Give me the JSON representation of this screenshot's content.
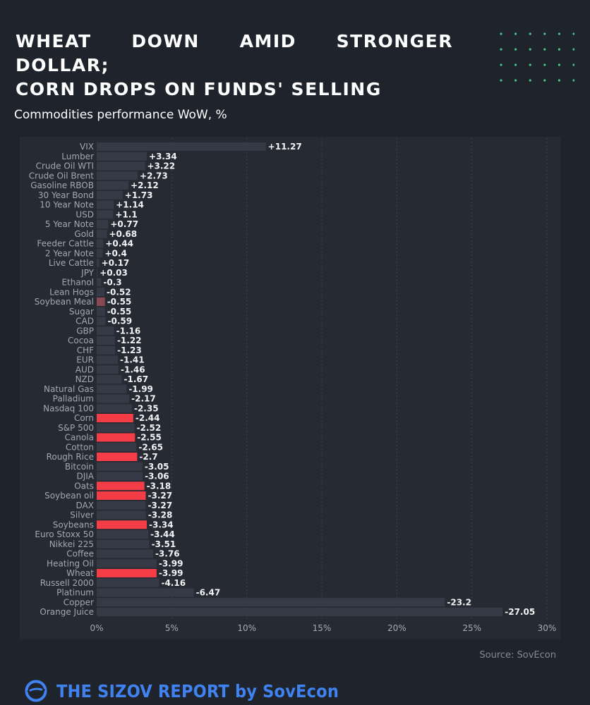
{
  "headline": {
    "line1": "WHEAT DOWN AMID STRONGER DOLLAR;",
    "line2": "CORN DROPS ON FUNDS' SELLING"
  },
  "brand": {
    "footer_text": "THE SIZOV REPORT by SovEcon",
    "logo_icon": "sovecon-logo-icon",
    "source": "Source: SovEcon"
  },
  "colors": {
    "background": "#1f232c",
    "plot_background": "#262a33",
    "bar_default": "#353a46",
    "bar_highlight": "#f43d46",
    "bar_soybean_meal": "#8a4852",
    "accent_dots": "#47c78a",
    "brand_blue": "#3f82f0"
  },
  "chart_data": {
    "type": "bar",
    "orientation": "horizontal",
    "title": "Commodities performance WoW, %",
    "x_tick_labels": [
      "0%",
      "5%",
      "10%",
      "15%",
      "20%",
      "25%",
      "30%"
    ],
    "x_ticks": [
      0,
      5,
      10,
      15,
      20,
      25,
      30
    ],
    "xlim": [
      0,
      30
    ],
    "bar_length": "absolute value",
    "grid": "vertical dashed",
    "categories": [
      "VIX",
      "Lumber",
      "Crude Oil WTI",
      "Crude Oil Brent",
      "Gasoline RBOB",
      "30 Year Bond",
      "10 Year Note",
      "USD",
      "5 Year Note",
      "Gold",
      "Feeder Cattle",
      "2 Year Note",
      "Live Cattle",
      "JPY",
      "Ethanol",
      "Lean Hogs",
      "Soybean Meal",
      "Sugar",
      "CAD",
      "GBP",
      "Cocoa",
      "CHF",
      "EUR",
      "AUD",
      "NZD",
      "Natural Gas",
      "Palladium",
      "Nasdaq 100",
      "Corn",
      "S&P 500",
      "Canola",
      "Cotton",
      "Rough Rice",
      "Bitcoin",
      "DJIA",
      "Oats",
      "Soybean oil",
      "DAX",
      "Silver",
      "Soybeans",
      "Euro Stoxx 50",
      "Nikkei 225",
      "Coffee",
      "Heating Oil",
      "Wheat",
      "Russell 2000",
      "Platinum",
      "Copper",
      "Orange Juice"
    ],
    "values": [
      11.27,
      3.34,
      3.22,
      2.73,
      2.12,
      1.73,
      1.14,
      1.1,
      0.77,
      0.68,
      0.44,
      0.4,
      0.17,
      0.03,
      -0.3,
      -0.52,
      -0.55,
      -0.55,
      -0.59,
      -1.16,
      -1.22,
      -1.23,
      -1.41,
      -1.46,
      -1.67,
      -1.99,
      -2.17,
      -2.35,
      -2.44,
      -2.52,
      -2.55,
      -2.65,
      -2.7,
      -3.05,
      -3.06,
      -3.18,
      -3.27,
      -3.27,
      -3.28,
      -3.34,
      -3.44,
      -3.51,
      -3.76,
      -3.99,
      -3.99,
      -4.16,
      -6.47,
      -23.2,
      -27.05
    ],
    "data_labels": [
      "+11.27",
      "+3.34",
      "+3.22",
      "+2.73",
      "+2.12",
      "+1.73",
      "+1.14",
      "+1.1",
      "+0.77",
      "+0.68",
      "+0.44",
      "+0.4",
      "+0.17",
      "+0.03",
      "-0.3",
      "-0.52",
      "-0.55",
      "-0.55",
      "-0.59",
      "-1.16",
      "-1.22",
      "-1.23",
      "-1.41",
      "-1.46",
      "-1.67",
      "-1.99",
      "-2.17",
      "-2.35",
      "-2.44",
      "-2.52",
      "-2.55",
      "-2.65",
      "-2.7",
      "-3.05",
      "-3.06",
      "-3.18",
      "-3.27",
      "-3.27",
      "-3.28",
      "-3.34",
      "-3.44",
      "-3.51",
      "-3.76",
      "-3.99",
      "-3.99",
      "-4.16",
      "-6.47",
      "-23.2",
      "-27.05"
    ],
    "highlighted": [
      "Corn",
      "Canola",
      "Rough Rice",
      "Oats",
      "Soybean oil",
      "Soybeans",
      "Wheat"
    ],
    "soft_highlighted": [
      "Soybean Meal"
    ]
  }
}
